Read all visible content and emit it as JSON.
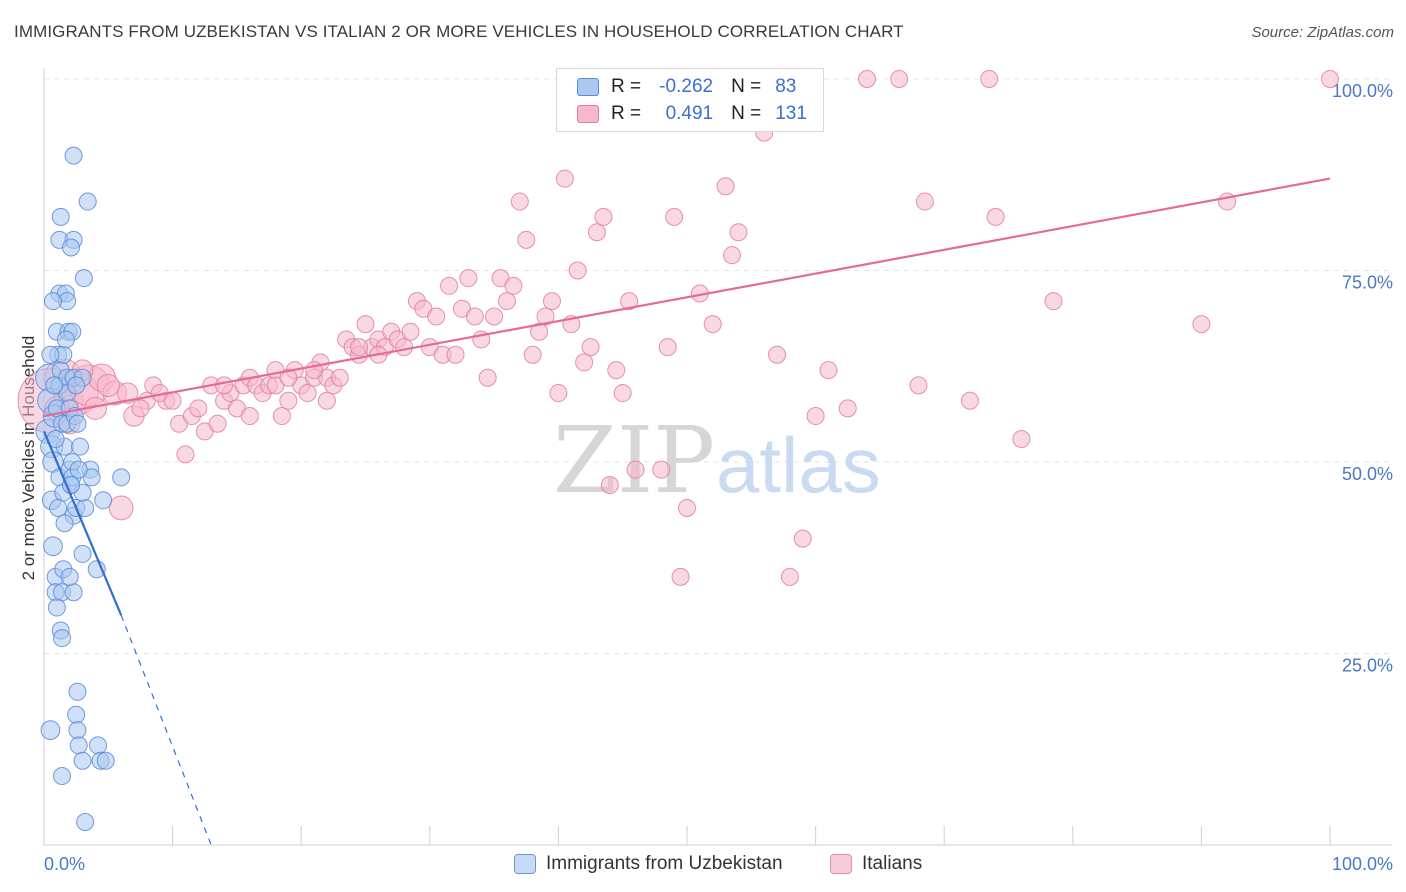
{
  "title": "IMMIGRANTS FROM UZBEKISTAN VS ITALIAN 2 OR MORE VEHICLES IN HOUSEHOLD CORRELATION CHART",
  "source": "Source: ZipAtlas.com",
  "watermark": {
    "zip": "ZIP",
    "atlas": "atlas"
  },
  "legend_top": [
    {
      "r_label": "R =",
      "r_value": "-0.262",
      "n_label": "N =",
      "n_value": "83"
    },
    {
      "r_label": "R =",
      "r_value": "0.491",
      "n_label": "N =",
      "n_value": "131"
    }
  ],
  "legend_bottom": [
    "Immigrants from Uzbekistan",
    "Italians"
  ],
  "colors": {
    "blue_fill": "#aac8f0",
    "blue_stroke": "#5a8ad8",
    "blue_line": "#2f6fcf",
    "pink_fill": "#f5b8cc",
    "pink_stroke": "#e27ea0",
    "pink_line": "#e46b96",
    "grid": "#e3e3e3",
    "tick_text": "#4a78c8"
  },
  "chart_data": {
    "type": "scatter",
    "title": "IMMIGRANTS FROM UZBEKISTAN VS ITALIAN 2 OR MORE VEHICLES IN HOUSEHOLD CORRELATION CHART",
    "xlabel": "",
    "ylabel": "2 or more Vehicles in Household",
    "xlim": [
      0,
      100
    ],
    "ylim": [
      0,
      100
    ],
    "x_tick_labels": [
      {
        "value": 0,
        "label": "0.0%"
      },
      {
        "value": 100,
        "label": "100.0%"
      }
    ],
    "y_tick_labels": [
      {
        "value": 25,
        "label": "25.0%"
      },
      {
        "value": 50,
        "label": "50.0%"
      },
      {
        "value": 75,
        "label": "75.0%"
      },
      {
        "value": 100,
        "label": "100.0%"
      }
    ],
    "grid": true,
    "series": [
      {
        "name": "Immigrants from Uzbekistan",
        "color": "blue",
        "trend": {
          "x": [
            0,
            6
          ],
          "y": [
            54,
            30
          ],
          "dashed_to": [
            13,
            0
          ]
        },
        "points": [
          [
            0.3,
            54,
            1.4
          ],
          [
            0.4,
            61,
            1.6
          ],
          [
            0.5,
            58,
            1.5
          ],
          [
            0.6,
            52,
            1.3
          ],
          [
            0.8,
            56,
            1.3
          ],
          [
            0.7,
            50,
            1.2
          ],
          [
            0.6,
            45,
            1.1
          ],
          [
            0.7,
            39,
            1.1
          ],
          [
            0.9,
            35,
            1
          ],
          [
            0.9,
            33,
            1
          ],
          [
            1.0,
            67,
            1
          ],
          [
            1.1,
            64,
            1
          ],
          [
            1.2,
            60,
            1
          ],
          [
            1.0,
            57,
            1
          ],
          [
            1.3,
            62,
            1
          ],
          [
            1.4,
            55,
            1
          ],
          [
            1.6,
            52,
            1
          ],
          [
            1.2,
            48,
            1
          ],
          [
            1.5,
            46,
            1
          ],
          [
            1.1,
            44,
            1
          ],
          [
            1.2,
            79,
            1
          ],
          [
            1.3,
            82,
            1
          ],
          [
            1.2,
            72,
            1
          ],
          [
            1.7,
            72,
            1
          ],
          [
            1.8,
            71,
            1
          ],
          [
            1.9,
            67,
            1
          ],
          [
            1.5,
            64,
            1
          ],
          [
            1.8,
            61,
            1
          ],
          [
            1.8,
            59,
            1
          ],
          [
            2.0,
            57,
            1
          ],
          [
            1.8,
            55,
            1
          ],
          [
            2.0,
            49,
            1
          ],
          [
            2.2,
            50,
            1
          ],
          [
            2.1,
            47,
            1
          ],
          [
            2.3,
            43,
            1
          ],
          [
            1.6,
            42,
            1
          ],
          [
            1.5,
            36,
            1
          ],
          [
            1.4,
            33,
            1
          ],
          [
            1.3,
            28,
            1
          ],
          [
            1.4,
            27,
            1
          ],
          [
            2.2,
            67,
            1
          ],
          [
            2.3,
            61,
            1
          ],
          [
            2.4,
            56,
            1
          ],
          [
            2.2,
            48,
            1
          ],
          [
            2.5,
            44,
            1
          ],
          [
            2.3,
            33,
            1
          ],
          [
            2.6,
            20,
            1
          ],
          [
            2.3,
            79,
            1
          ],
          [
            2.1,
            78,
            1
          ],
          [
            2.3,
            90,
            1
          ],
          [
            3.1,
            74,
            1
          ],
          [
            3.2,
            44,
            1
          ],
          [
            3.0,
            38,
            1
          ],
          [
            3.4,
            84,
            1
          ],
          [
            3.6,
            49,
            1
          ],
          [
            3.7,
            48,
            1
          ],
          [
            4.1,
            36,
            1
          ],
          [
            4.6,
            45,
            1
          ],
          [
            6.0,
            48,
            1
          ],
          [
            3.0,
            61,
            1
          ],
          [
            2.5,
            60,
            1
          ],
          [
            2.6,
            55,
            1
          ],
          [
            2.8,
            52,
            1
          ],
          [
            2.7,
            49,
            1
          ],
          [
            3.0,
            46,
            1
          ],
          [
            0.5,
            15,
            1.1
          ],
          [
            2.5,
            17,
            1
          ],
          [
            2.6,
            15,
            1
          ],
          [
            2.7,
            13,
            1
          ],
          [
            3.0,
            11,
            1
          ],
          [
            4.2,
            13,
            1
          ],
          [
            4.4,
            11,
            1
          ],
          [
            4.8,
            11,
            1
          ],
          [
            1.4,
            9,
            1
          ],
          [
            3.2,
            3,
            1
          ],
          [
            0.5,
            64,
            1
          ],
          [
            0.8,
            60,
            1
          ],
          [
            0.9,
            53,
            1
          ],
          [
            2.1,
            47,
            1
          ],
          [
            1.0,
            31,
            1
          ],
          [
            0.7,
            71,
            1
          ],
          [
            1.7,
            66,
            1
          ],
          [
            2.0,
            35,
            1
          ]
        ]
      },
      {
        "name": "Italians",
        "color": "pink",
        "trend": {
          "x": [
            0,
            100
          ],
          "y": [
            56,
            87
          ]
        },
        "points": [
          [
            0.5,
            58,
            3.8
          ],
          [
            1.5,
            61,
            2.2
          ],
          [
            2.5,
            59,
            2.6
          ],
          [
            3.5,
            60,
            2.4
          ],
          [
            4.5,
            61,
            1.6
          ],
          [
            5.5,
            59,
            1.4
          ],
          [
            6.0,
            44,
            1.4
          ],
          [
            7.0,
            56,
            1.2
          ],
          [
            8.0,
            58,
            1
          ],
          [
            8.5,
            60,
            1
          ],
          [
            9.5,
            58,
            1
          ],
          [
            10.5,
            55,
            1
          ],
          [
            11.0,
            51,
            1
          ],
          [
            11.5,
            56,
            1
          ],
          [
            12.5,
            54,
            1
          ],
          [
            13.0,
            60,
            1
          ],
          [
            13.5,
            55,
            1
          ],
          [
            14.0,
            58,
            1
          ],
          [
            14.5,
            59,
            1
          ],
          [
            15.0,
            57,
            1
          ],
          [
            15.5,
            60,
            1
          ],
          [
            16.0,
            61,
            1
          ],
          [
            16.5,
            60,
            1
          ],
          [
            17.0,
            59,
            1
          ],
          [
            17.5,
            60,
            1
          ],
          [
            18.0,
            62,
            1
          ],
          [
            18.5,
            56,
            1
          ],
          [
            19.0,
            58,
            1
          ],
          [
            19.5,
            62,
            1
          ],
          [
            20.0,
            60,
            1
          ],
          [
            20.5,
            59,
            1
          ],
          [
            21.0,
            61,
            1
          ],
          [
            21.5,
            63,
            1
          ],
          [
            22.0,
            61,
            1
          ],
          [
            22.5,
            60,
            1
          ],
          [
            23.0,
            61,
            1
          ],
          [
            23.5,
            66,
            1
          ],
          [
            24.0,
            65,
            1
          ],
          [
            24.5,
            64,
            1
          ],
          [
            25.0,
            68,
            1
          ],
          [
            25.5,
            65,
            1
          ],
          [
            26.0,
            66,
            1
          ],
          [
            26.5,
            65,
            1
          ],
          [
            27.0,
            67,
            1
          ],
          [
            27.5,
            66,
            1
          ],
          [
            28.0,
            65,
            1
          ],
          [
            28.5,
            67,
            1
          ],
          [
            29.0,
            71,
            1
          ],
          [
            29.5,
            70,
            1
          ],
          [
            30.0,
            65,
            1
          ],
          [
            30.5,
            69,
            1
          ],
          [
            31.0,
            64,
            1
          ],
          [
            31.5,
            73,
            1
          ],
          [
            32.0,
            64,
            1
          ],
          [
            32.5,
            70,
            1
          ],
          [
            33.0,
            74,
            1
          ],
          [
            33.5,
            69,
            1
          ],
          [
            34.0,
            66,
            1
          ],
          [
            34.5,
            61,
            1
          ],
          [
            35.0,
            69,
            1
          ],
          [
            35.5,
            74,
            1
          ],
          [
            36.0,
            71,
            1
          ],
          [
            36.5,
            73,
            1
          ],
          [
            37.0,
            84,
            1
          ],
          [
            37.5,
            79,
            1
          ],
          [
            38.0,
            64,
            1
          ],
          [
            38.5,
            67,
            1
          ],
          [
            39.0,
            69,
            1
          ],
          [
            39.5,
            71,
            1
          ],
          [
            40.0,
            59,
            1
          ],
          [
            40.5,
            87,
            1
          ],
          [
            41.0,
            68,
            1
          ],
          [
            41.5,
            75,
            1
          ],
          [
            42.0,
            63,
            1
          ],
          [
            42.5,
            65,
            1
          ],
          [
            43.0,
            80,
            1
          ],
          [
            43.5,
            82,
            1
          ],
          [
            44.0,
            47,
            1
          ],
          [
            44.5,
            62,
            1
          ],
          [
            45.0,
            59,
            1
          ],
          [
            45.5,
            71,
            1
          ],
          [
            46.0,
            49,
            1
          ],
          [
            47.0,
            100,
            1
          ],
          [
            48.0,
            49,
            1
          ],
          [
            48.5,
            65,
            1
          ],
          [
            49.0,
            82,
            1
          ],
          [
            49.5,
            35,
            1
          ],
          [
            50.0,
            44,
            1
          ],
          [
            51.0,
            72,
            1
          ],
          [
            52.0,
            68,
            1
          ],
          [
            53.0,
            86,
            1
          ],
          [
            53.5,
            77,
            1
          ],
          [
            54.0,
            80,
            1
          ],
          [
            55.0,
            97,
            1
          ],
          [
            56.0,
            93,
            1
          ],
          [
            57.0,
            64,
            1
          ],
          [
            58.0,
            35,
            1
          ],
          [
            59.0,
            40,
            1
          ],
          [
            60.0,
            56,
            1
          ],
          [
            61.0,
            62,
            1
          ],
          [
            62.5,
            57,
            1
          ],
          [
            64.0,
            100,
            1
          ],
          [
            66.5,
            100,
            1
          ],
          [
            68.5,
            84,
            1
          ],
          [
            68.0,
            60,
            1
          ],
          [
            72.0,
            58,
            1
          ],
          [
            73.5,
            100,
            1
          ],
          [
            74.0,
            82,
            1
          ],
          [
            76.0,
            53,
            1
          ],
          [
            78.5,
            71,
            1
          ],
          [
            90.0,
            68,
            1
          ],
          [
            92.0,
            84,
            1
          ],
          [
            100.0,
            100,
            1
          ],
          [
            1.0,
            57,
            1.4
          ],
          [
            2.0,
            55,
            1.2
          ],
          [
            3.0,
            62,
            1.2
          ],
          [
            4.0,
            57,
            1.3
          ],
          [
            5.0,
            60,
            1.3
          ],
          [
            6.5,
            59,
            1.2
          ],
          [
            7.5,
            57,
            1
          ],
          [
            9.0,
            59,
            1
          ],
          [
            10.0,
            58,
            1
          ],
          [
            12.0,
            57,
            1
          ],
          [
            14.0,
            60,
            1
          ],
          [
            16.0,
            56,
            1
          ],
          [
            18.0,
            60,
            1
          ],
          [
            19.0,
            61,
            1
          ],
          [
            21.0,
            62,
            1
          ],
          [
            22.0,
            58,
            1
          ],
          [
            24.5,
            65,
            1
          ],
          [
            26.0,
            64,
            1
          ]
        ]
      }
    ]
  }
}
